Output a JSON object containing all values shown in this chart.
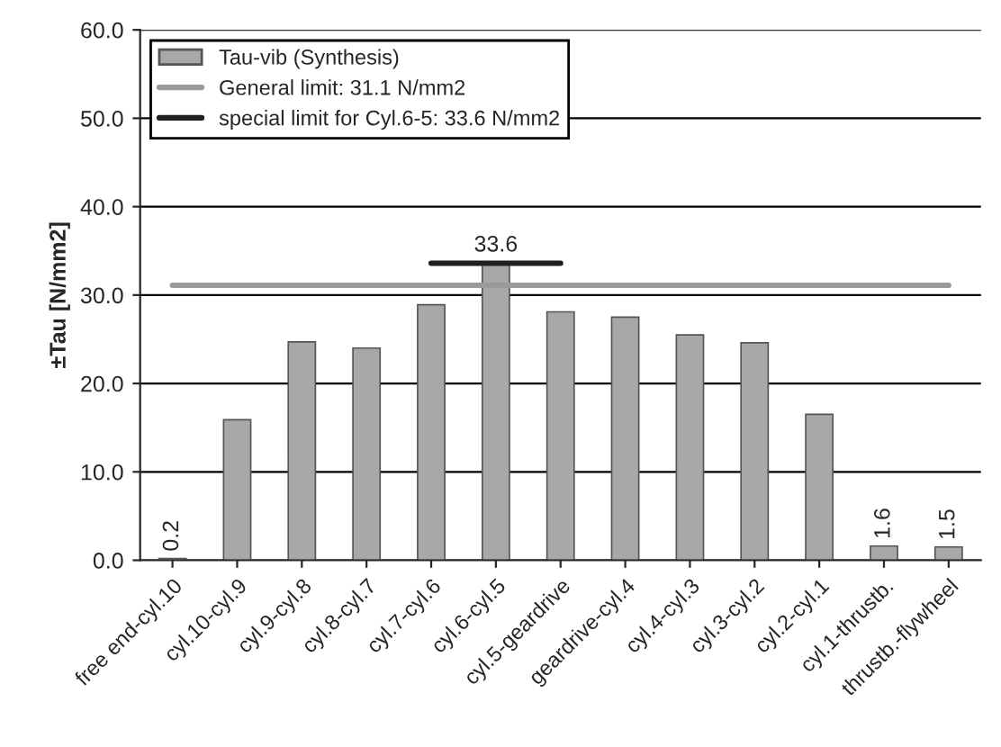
{
  "chart_data": {
    "type": "bar",
    "ylabel": "±Tau [N/mm2]",
    "categories": [
      "free end-cyl.10",
      "cyl.10-cyl.9",
      "cyl.9-cyl.8",
      "cyl.8-cyl.7",
      "cyl.7-cyl.6",
      "cyl.6-cyl.5",
      "cyl.5-geardrive",
      "geardrive-cyl.4",
      "cyl.4-cyl.3",
      "cyl.3-cyl.2",
      "cyl.2-cyl.1",
      "cyl.1-thrustb.",
      "thrustb.-flywheel"
    ],
    "series": [
      {
        "name": "Tau-vib (Synthesis)",
        "color": "#a8a8a8",
        "values": [
          0.2,
          15.9,
          24.7,
          24.0,
          28.9,
          33.6,
          28.1,
          27.5,
          25.5,
          24.6,
          16.5,
          1.6,
          1.5
        ],
        "value_labels": [
          "0.2",
          null,
          null,
          null,
          null,
          null,
          null,
          null,
          null,
          null,
          null,
          "1.6",
          "1.5"
        ]
      },
      {
        "name": "General limit: 31.1 N/mm2",
        "type": "line",
        "color": "#9a9a9a",
        "values": [
          31.1,
          31.1,
          31.1,
          31.1,
          31.1,
          31.1,
          31.1,
          31.1,
          31.1,
          31.1,
          31.1,
          31.1,
          31.1
        ]
      },
      {
        "name": "special limit for Cyl.6-5: 33.6 N/mm2",
        "type": "line",
        "color": "#202020",
        "values": [
          null,
          null,
          null,
          null,
          33.6,
          33.6,
          33.6,
          null,
          null,
          null,
          null,
          null,
          null
        ],
        "value_labels": [
          null,
          null,
          null,
          null,
          null,
          "33.6",
          null,
          null,
          null,
          null,
          null,
          null,
          null
        ]
      }
    ],
    "ylim": [
      0,
      60
    ],
    "yticks": [
      {
        "value": 0,
        "label": "0.0"
      },
      {
        "value": 10,
        "label": "10.0"
      },
      {
        "value": 20,
        "label": "20.0"
      },
      {
        "value": 30,
        "label": "30.0"
      },
      {
        "value": 40,
        "label": "40.0"
      },
      {
        "value": 50,
        "label": "50.0"
      },
      {
        "value": 60,
        "label": "60.0"
      }
    ],
    "grid": "y",
    "legend": "top left"
  }
}
